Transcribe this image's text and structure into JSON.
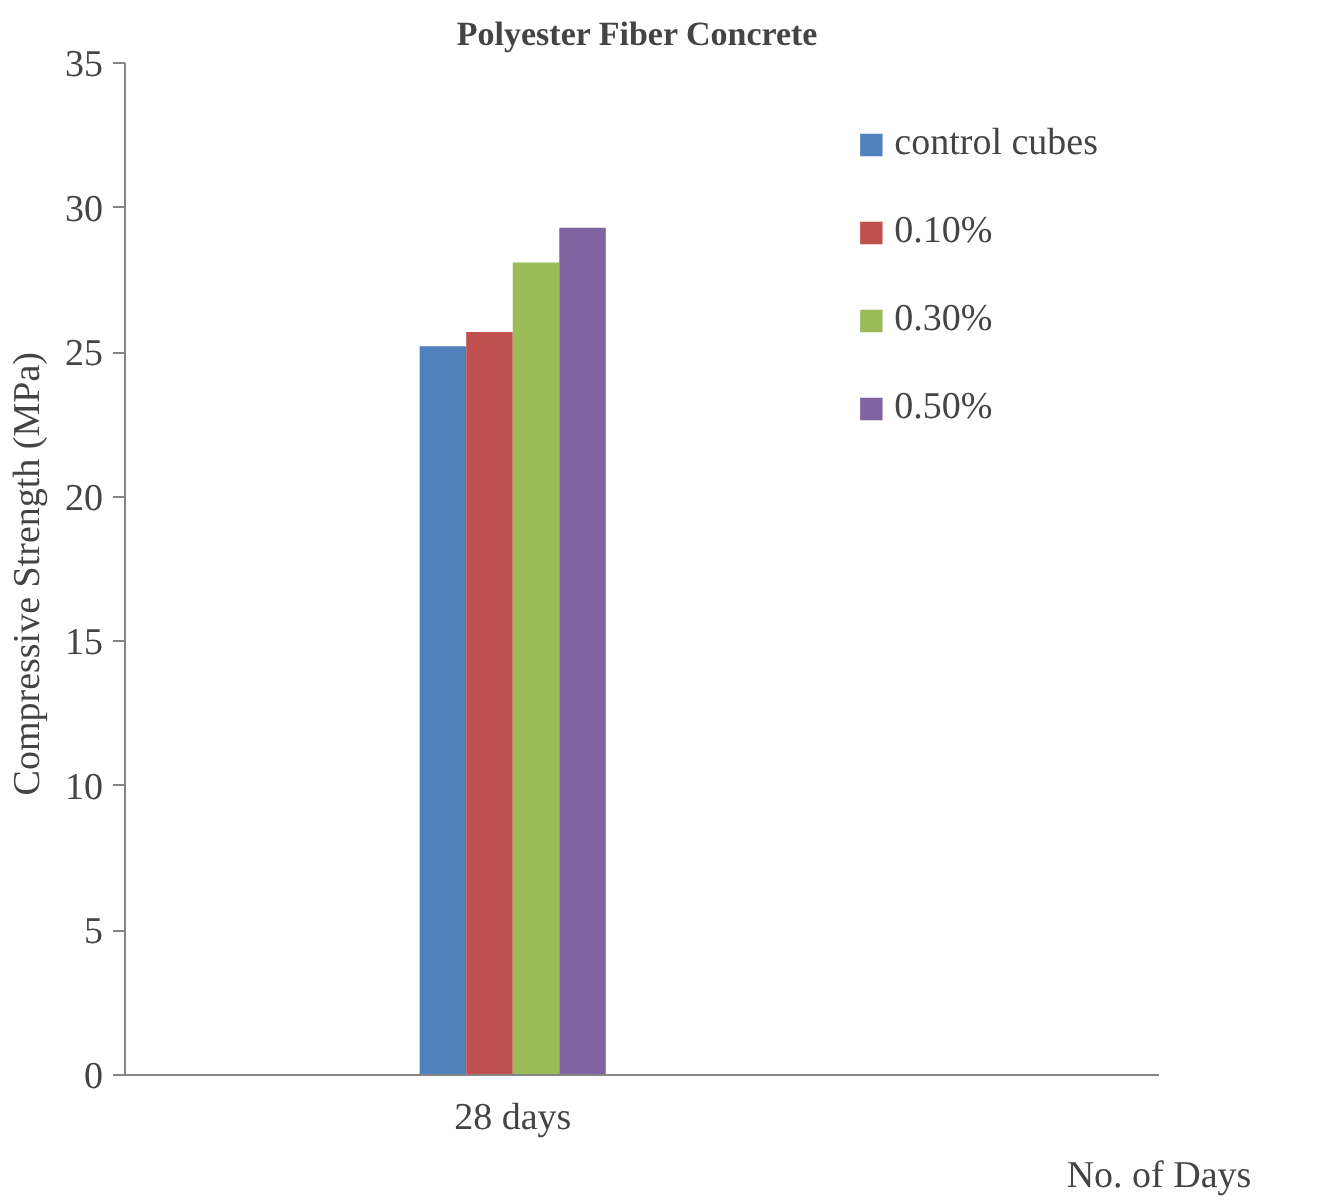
{
  "chart_data": {
    "type": "bar",
    "title": "Polyester Fiber  Concrete",
    "ylabel": "Compressive Strength  (MPa)",
    "xlabel": "No. of Days",
    "categories": [
      null,
      "28 days",
      null,
      null
    ],
    "series": [
      {
        "name": "control cubes",
        "color": "#4f81bd",
        "values": [
          null,
          25.2,
          null,
          null
        ]
      },
      {
        "name": "0.10%",
        "color": "#c0504d",
        "values": [
          null,
          25.7,
          null,
          null
        ]
      },
      {
        "name": "0.30%",
        "color": "#9bbb59",
        "values": [
          null,
          28.1,
          null,
          null
        ]
      },
      {
        "name": "0.50%",
        "color": "#8064a2",
        "values": [
          null,
          29.3,
          null,
          null
        ]
      }
    ],
    "ylim": [
      0,
      35
    ],
    "yticks": [
      0,
      5,
      10,
      15,
      20,
      25,
      30,
      35
    ],
    "grid": false,
    "legend": "top right"
  }
}
